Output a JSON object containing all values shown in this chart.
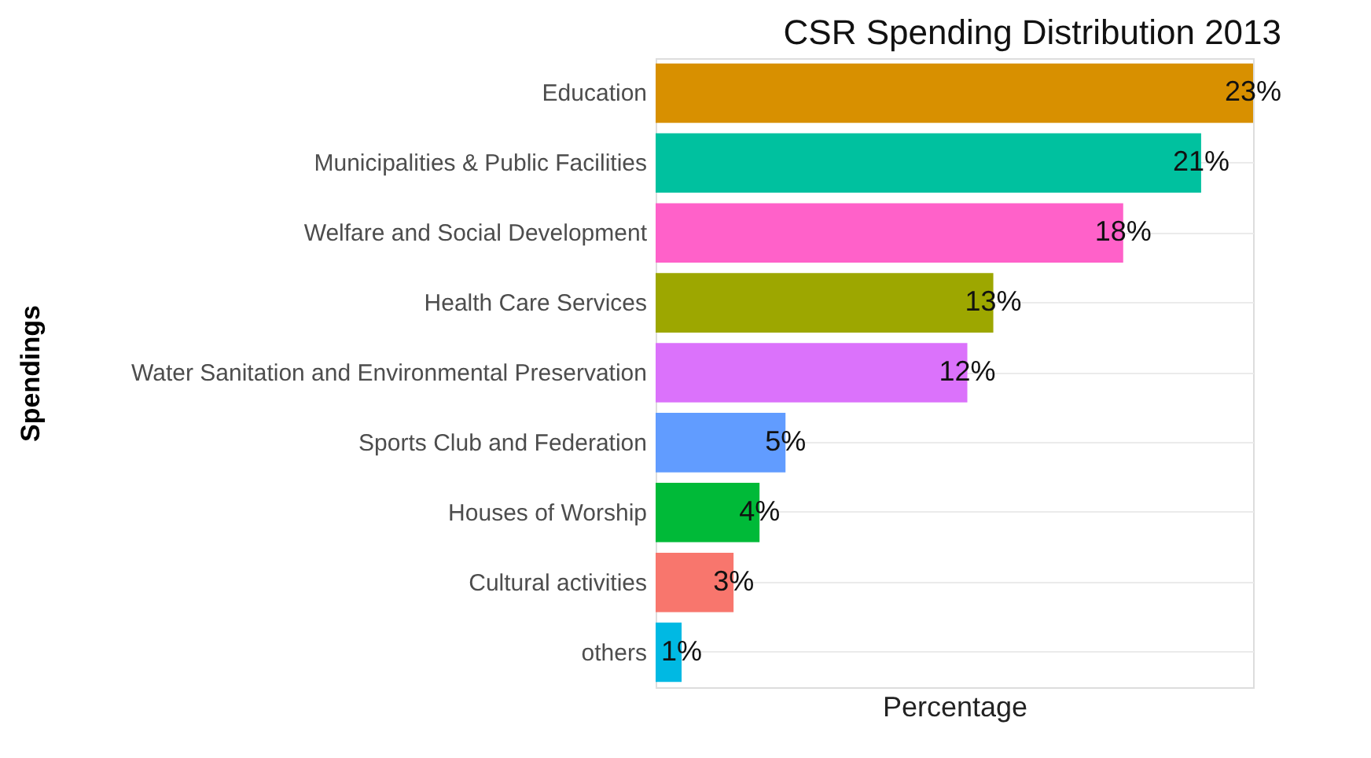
{
  "chart_data": {
    "type": "bar",
    "orientation": "horizontal",
    "title": "CSR Spending Distribution 2013",
    "xlabel": "Percentage",
    "ylabel": "Spendings",
    "categories": [
      "Education",
      "Municipalities & Public Facilities",
      "Welfare and Social Development",
      "Health Care Services",
      "Water Sanitation and Environmental Preservation",
      "Sports Club and Federation",
      "Houses of Worship",
      "Cultural activities",
      "others"
    ],
    "values": [
      23,
      21,
      18,
      13,
      12,
      5,
      4,
      3,
      1
    ],
    "value_labels": [
      "23%",
      "21%",
      "18%",
      "13%",
      "12%",
      "5%",
      "4%",
      "3%",
      "1%"
    ],
    "colors": [
      "#d89000",
      "#00c19f",
      "#ff61c9",
      "#9da700",
      "#db72fb",
      "#619cff",
      "#00ba38",
      "#f8766d",
      "#00b9e3"
    ],
    "grid": "y",
    "tick_labels": "y"
  }
}
